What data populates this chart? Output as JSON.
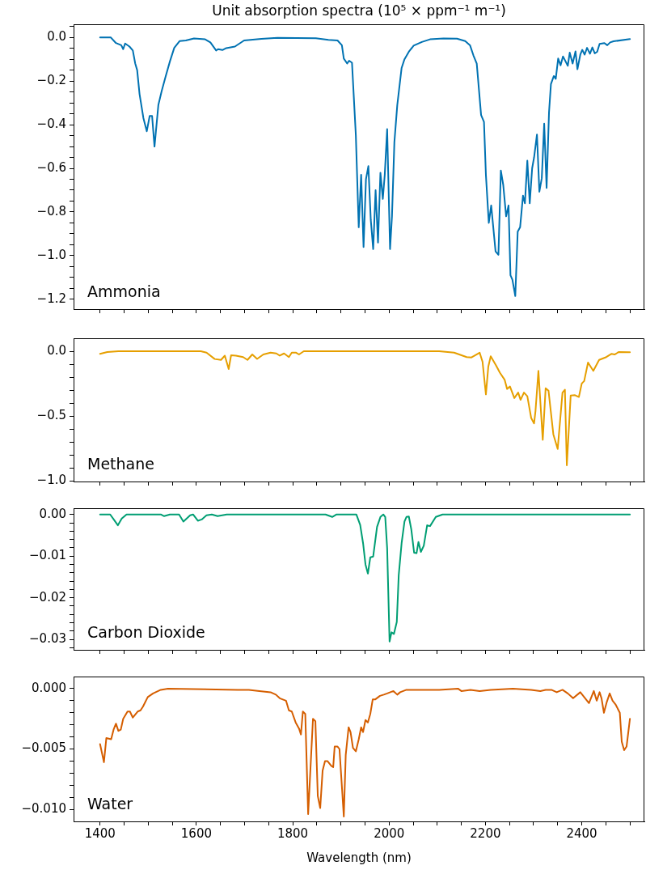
{
  "chart_data": [
    {
      "type": "line",
      "title": "Unit absorption spectra (10⁵ × ppm⁻¹ m⁻¹)",
      "annotations": [
        "Ammonia"
      ],
      "tick_labels": "y",
      "xlim": [
        1345,
        2530
      ],
      "xticks": [
        {
          "value": 1400,
          "label": null
        },
        {
          "value": 1450,
          "label": null
        },
        {
          "value": 1500,
          "label": null
        },
        {
          "value": 1550,
          "label": null
        },
        {
          "value": 1600,
          "label": null
        },
        {
          "value": 1650,
          "label": null
        },
        {
          "value": 1700,
          "label": null
        },
        {
          "value": 1750,
          "label": null
        },
        {
          "value": 1800,
          "label": null
        },
        {
          "value": 1850,
          "label": null
        },
        {
          "value": 1900,
          "label": null
        },
        {
          "value": 1950,
          "label": null
        },
        {
          "value": 2000,
          "label": null
        },
        {
          "value": 2050,
          "label": null
        },
        {
          "value": 2100,
          "label": null
        },
        {
          "value": 2150,
          "label": null
        },
        {
          "value": 2200,
          "label": null
        },
        {
          "value": 2250,
          "label": null
        },
        {
          "value": 2300,
          "label": null
        },
        {
          "value": 2350,
          "label": null
        },
        {
          "value": 2400,
          "label": null
        },
        {
          "value": 2450,
          "label": null
        },
        {
          "value": 2500,
          "label": null
        }
      ],
      "ylim": [
        -1.245,
        0.06
      ],
      "yticks": [
        {
          "value": 0.05,
          "label": null
        },
        {
          "value": 0,
          "label": "0.0"
        },
        {
          "value": -0.05,
          "label": null
        },
        {
          "value": -0.1,
          "label": null
        },
        {
          "value": -0.15,
          "label": null
        },
        {
          "value": -0.2,
          "label": "−0.2"
        },
        {
          "value": -0.25,
          "label": null
        },
        {
          "value": -0.3,
          "label": null
        },
        {
          "value": -0.35,
          "label": null
        },
        {
          "value": -0.4,
          "label": "−0.4"
        },
        {
          "value": -0.45,
          "label": null
        },
        {
          "value": -0.5,
          "label": null
        },
        {
          "value": -0.55,
          "label": null
        },
        {
          "value": -0.6,
          "label": "−0.6"
        },
        {
          "value": -0.65,
          "label": null
        },
        {
          "value": -0.7,
          "label": null
        },
        {
          "value": -0.75,
          "label": null
        },
        {
          "value": -0.8,
          "label": "−0.8"
        },
        {
          "value": -0.85,
          "label": null
        },
        {
          "value": -0.9,
          "label": null
        },
        {
          "value": -0.95,
          "label": null
        },
        {
          "value": -1.0,
          "label": "−1.0"
        },
        {
          "value": -1.05,
          "label": null
        },
        {
          "value": -1.1,
          "label": null
        },
        {
          "value": -1.15,
          "label": null
        },
        {
          "value": -1.2,
          "label": "−1.2"
        }
      ],
      "series": [
        {
          "color": "#0072b2",
          "x": [
            1400,
            1422,
            1433,
            1444,
            1448,
            1452,
            1461,
            1468,
            1473,
            1477,
            1482,
            1490,
            1497,
            1503,
            1508,
            1513,
            1521,
            1528,
            1536,
            1545,
            1554,
            1565,
            1578,
            1595,
            1618,
            1629,
            1641,
            1645,
            1654,
            1662,
            1680,
            1699,
            1735,
            1768,
            1848,
            1874,
            1893,
            1902,
            1906,
            1913,
            1917,
            1923,
            1931,
            1937,
            1942,
            1947,
            1952,
            1957,
            1962,
            1967,
            1972,
            1977,
            1982,
            1987,
            1991,
            1996,
            2002,
            2006,
            2011,
            2017,
            2026,
            2032,
            2041,
            2051,
            2068,
            2085,
            2113,
            2141,
            2158,
            2168,
            2175,
            2182,
            2191,
            2197,
            2201,
            2207,
            2212,
            2221,
            2227,
            2232,
            2237,
            2243,
            2248,
            2252,
            2256,
            2262,
            2267,
            2272,
            2278,
            2282,
            2287,
            2292,
            2297,
            2301,
            2307,
            2312,
            2317,
            2322,
            2327,
            2332,
            2336,
            2342,
            2346,
            2351,
            2356,
            2361,
            2371,
            2375,
            2381,
            2387,
            2391,
            2397,
            2401,
            2406,
            2411,
            2417,
            2422,
            2427,
            2432,
            2437,
            2447,
            2453,
            2459,
            2466,
            2500
          ],
          "values": [
            0,
            0,
            -0.026,
            -0.036,
            -0.054,
            -0.028,
            -0.042,
            -0.06,
            -0.12,
            -0.15,
            -0.26,
            -0.37,
            -0.43,
            -0.36,
            -0.36,
            -0.5,
            -0.31,
            -0.245,
            -0.18,
            -0.11,
            -0.048,
            -0.017,
            -0.014,
            -0.005,
            -0.009,
            -0.023,
            -0.06,
            -0.054,
            -0.058,
            -0.049,
            -0.042,
            -0.014,
            -0.007,
            -0.002,
            -0.004,
            -0.011,
            -0.014,
            -0.036,
            -0.097,
            -0.12,
            -0.107,
            -0.116,
            -0.45,
            -0.87,
            -0.63,
            -0.96,
            -0.65,
            -0.59,
            -0.836,
            -0.97,
            -0.7,
            -0.94,
            -0.62,
            -0.74,
            -0.63,
            -0.42,
            -0.97,
            -0.82,
            -0.48,
            -0.31,
            -0.14,
            -0.1,
            -0.066,
            -0.038,
            -0.021,
            -0.009,
            -0.005,
            -0.006,
            -0.017,
            -0.036,
            -0.082,
            -0.12,
            -0.356,
            -0.387,
            -0.63,
            -0.85,
            -0.77,
            -0.98,
            -0.996,
            -0.61,
            -0.676,
            -0.82,
            -0.77,
            -1.09,
            -1.11,
            -1.185,
            -0.89,
            -0.87,
            -0.725,
            -0.76,
            -0.565,
            -0.76,
            -0.6,
            -0.55,
            -0.445,
            -0.707,
            -0.645,
            -0.395,
            -0.69,
            -0.344,
            -0.214,
            -0.177,
            -0.19,
            -0.097,
            -0.128,
            -0.087,
            -0.13,
            -0.07,
            -0.12,
            -0.064,
            -0.146,
            -0.079,
            -0.057,
            -0.079,
            -0.048,
            -0.075,
            -0.046,
            -0.073,
            -0.066,
            -0.03,
            -0.026,
            -0.036,
            -0.023,
            -0.018,
            -0.008
          ]
        }
      ]
    },
    {
      "type": "line",
      "annotations": [
        "Methane"
      ],
      "tick_labels": "y",
      "xlim": [
        1345,
        2530
      ],
      "xticks": [
        {
          "value": 1400,
          "label": null
        },
        {
          "value": 1450,
          "label": null
        },
        {
          "value": 1500,
          "label": null
        },
        {
          "value": 1550,
          "label": null
        },
        {
          "value": 1600,
          "label": null
        },
        {
          "value": 1650,
          "label": null
        },
        {
          "value": 1700,
          "label": null
        },
        {
          "value": 1750,
          "label": null
        },
        {
          "value": 1800,
          "label": null
        },
        {
          "value": 1850,
          "label": null
        },
        {
          "value": 1900,
          "label": null
        },
        {
          "value": 1950,
          "label": null
        },
        {
          "value": 2000,
          "label": null
        },
        {
          "value": 2050,
          "label": null
        },
        {
          "value": 2100,
          "label": null
        },
        {
          "value": 2150,
          "label": null
        },
        {
          "value": 2200,
          "label": null
        },
        {
          "value": 2250,
          "label": null
        },
        {
          "value": 2300,
          "label": null
        },
        {
          "value": 2350,
          "label": null
        },
        {
          "value": 2400,
          "label": null
        },
        {
          "value": 2450,
          "label": null
        },
        {
          "value": 2500,
          "label": null
        }
      ],
      "ylim": [
        -1.005,
        0.1
      ],
      "yticks": [
        {
          "value": 0,
          "label": "0.0"
        },
        {
          "value": -0.1,
          "label": null
        },
        {
          "value": -0.2,
          "label": null
        },
        {
          "value": -0.3,
          "label": null
        },
        {
          "value": -0.4,
          "label": null
        },
        {
          "value": -0.5,
          "label": "−0.5"
        },
        {
          "value": -0.6,
          "label": null
        },
        {
          "value": -0.7,
          "label": null
        },
        {
          "value": -0.8,
          "label": null
        },
        {
          "value": -0.9,
          "label": null
        },
        {
          "value": -1.0,
          "label": "−1.0"
        }
      ],
      "series": [
        {
          "color": "#e69f00",
          "x": [
            1400,
            1415,
            1438,
            1609,
            1621,
            1638,
            1651,
            1659,
            1667,
            1672,
            1682,
            1697,
            1706,
            1716,
            1726,
            1739,
            1754,
            1766,
            1773,
            1782,
            1792,
            1798,
            1807,
            1813,
            1823,
            2104,
            2135,
            2161,
            2171,
            2188,
            2194,
            2201,
            2206,
            2211,
            2222,
            2230,
            2240,
            2245,
            2251,
            2260,
            2268,
            2273,
            2280,
            2287,
            2295,
            2301,
            2304,
            2310,
            2319,
            2325,
            2331,
            2341,
            2350,
            2360,
            2365,
            2369,
            2377,
            2386,
            2394,
            2400,
            2405,
            2413,
            2424,
            2436,
            2451,
            2462,
            2468,
            2477,
            2500
          ],
          "values": [
            -0.02,
            -0.006,
            0,
            0,
            -0.011,
            -0.06,
            -0.067,
            -0.034,
            -0.137,
            -0.031,
            -0.034,
            -0.045,
            -0.067,
            -0.025,
            -0.059,
            -0.025,
            -0.011,
            -0.017,
            -0.034,
            -0.017,
            -0.045,
            -0.011,
            -0.011,
            -0.025,
            0,
            0,
            -0.011,
            -0.045,
            -0.048,
            -0.011,
            -0.081,
            -0.333,
            -0.118,
            -0.039,
            -0.109,
            -0.165,
            -0.221,
            -0.291,
            -0.272,
            -0.361,
            -0.319,
            -0.375,
            -0.319,
            -0.347,
            -0.515,
            -0.557,
            -0.459,
            -0.151,
            -0.683,
            -0.286,
            -0.305,
            -0.641,
            -0.754,
            -0.319,
            -0.297,
            -0.88,
            -0.342,
            -0.339,
            -0.353,
            -0.249,
            -0.23,
            -0.087,
            -0.151,
            -0.067,
            -0.045,
            -0.02,
            -0.025,
            -0.006,
            -0.008
          ]
        }
      ]
    },
    {
      "type": "line",
      "annotations": [
        "Carbon Dioxide"
      ],
      "tick_labels": "y",
      "xlim": [
        1345,
        2530
      ],
      "xticks": [
        {
          "value": 1400,
          "label": null
        },
        {
          "value": 1450,
          "label": null
        },
        {
          "value": 1500,
          "label": null
        },
        {
          "value": 1550,
          "label": null
        },
        {
          "value": 1600,
          "label": null
        },
        {
          "value": 1650,
          "label": null
        },
        {
          "value": 1700,
          "label": null
        },
        {
          "value": 1750,
          "label": null
        },
        {
          "value": 1800,
          "label": null
        },
        {
          "value": 1850,
          "label": null
        },
        {
          "value": 1900,
          "label": null
        },
        {
          "value": 1950,
          "label": null
        },
        {
          "value": 2000,
          "label": null
        },
        {
          "value": 2050,
          "label": null
        },
        {
          "value": 2100,
          "label": null
        },
        {
          "value": 2150,
          "label": null
        },
        {
          "value": 2200,
          "label": null
        },
        {
          "value": 2250,
          "label": null
        },
        {
          "value": 2300,
          "label": null
        },
        {
          "value": 2350,
          "label": null
        },
        {
          "value": 2400,
          "label": null
        },
        {
          "value": 2450,
          "label": null
        },
        {
          "value": 2500,
          "label": null
        }
      ],
      "ylim": [
        -0.0325,
        0.0015
      ],
      "yticks": [
        {
          "value": 0,
          "label": "0.00"
        },
        {
          "value": -0.002,
          "label": null
        },
        {
          "value": -0.004,
          "label": null
        },
        {
          "value": -0.006,
          "label": null
        },
        {
          "value": -0.008,
          "label": null
        },
        {
          "value": -0.01,
          "label": "−0.01"
        },
        {
          "value": -0.012,
          "label": null
        },
        {
          "value": -0.014,
          "label": null
        },
        {
          "value": -0.016,
          "label": null
        },
        {
          "value": -0.018,
          "label": null
        },
        {
          "value": -0.02,
          "label": "−0.02"
        },
        {
          "value": -0.022,
          "label": null
        },
        {
          "value": -0.024,
          "label": null
        },
        {
          "value": -0.026,
          "label": null
        },
        {
          "value": -0.028,
          "label": null
        },
        {
          "value": -0.03,
          "label": "−0.03"
        },
        {
          "value": -0.032,
          "label": null
        }
      ],
      "series": [
        {
          "color": "#009e73",
          "x": [
            1400,
            1421,
            1429,
            1437,
            1445,
            1455,
            1526,
            1533,
            1545,
            1564,
            1573,
            1587,
            1593,
            1603,
            1611,
            1621,
            1632,
            1644,
            1663,
            1868,
            1882,
            1891,
            1932,
            1940,
            1946,
            1951,
            1956,
            1961,
            1967,
            1975,
            1982,
            1988,
            1992,
            1996,
            2001,
            2005,
            2010,
            2016,
            2020,
            2026,
            2032,
            2036,
            2041,
            2046,
            2052,
            2057,
            2061,
            2066,
            2072,
            2079,
            2085,
            2097,
            2111,
            2478,
            2500
          ],
          "values": [
            0,
            0,
            -0.0013,
            -0.0026,
            -0.001,
            0,
            0,
            -0.0004,
            0,
            0,
            -0.0017,
            -0.0002,
            0,
            -0.0015,
            -0.0012,
            -0.0002,
            0,
            -0.0004,
            0,
            0,
            -0.0006,
            0,
            0,
            -0.0025,
            -0.0069,
            -0.012,
            -0.0142,
            -0.0103,
            -0.0101,
            -0.003,
            -0.0006,
            0,
            -0.0006,
            -0.0081,
            -0.0305,
            -0.0283,
            -0.0287,
            -0.0258,
            -0.0146,
            -0.0069,
            -0.0017,
            -0.0006,
            -0.0005,
            -0.0035,
            -0.0092,
            -0.0093,
            -0.0066,
            -0.009,
            -0.0075,
            -0.0026,
            -0.0028,
            -0.0006,
            0,
            0,
            0
          ]
        }
      ]
    },
    {
      "type": "line",
      "annotations": [
        "Water"
      ],
      "xlabel": "Wavelength (nm)",
      "xlim": [
        1345,
        2530
      ],
      "xticks": [
        {
          "value": 1400,
          "label": "1400"
        },
        {
          "value": 1450,
          "label": null
        },
        {
          "value": 1500,
          "label": null
        },
        {
          "value": 1550,
          "label": null
        },
        {
          "value": 1600,
          "label": "1600"
        },
        {
          "value": 1650,
          "label": null
        },
        {
          "value": 1700,
          "label": null
        },
        {
          "value": 1750,
          "label": null
        },
        {
          "value": 1800,
          "label": "1800"
        },
        {
          "value": 1850,
          "label": null
        },
        {
          "value": 1900,
          "label": null
        },
        {
          "value": 1950,
          "label": null
        },
        {
          "value": 2000,
          "label": "2000"
        },
        {
          "value": 2050,
          "label": null
        },
        {
          "value": 2100,
          "label": null
        },
        {
          "value": 2150,
          "label": null
        },
        {
          "value": 2200,
          "label": "2200"
        },
        {
          "value": 2250,
          "label": null
        },
        {
          "value": 2300,
          "label": null
        },
        {
          "value": 2350,
          "label": null
        },
        {
          "value": 2400,
          "label": "2400"
        },
        {
          "value": 2450,
          "label": null
        },
        {
          "value": 2500,
          "label": null
        }
      ],
      "ylim": [
        -0.011,
        0.001
      ],
      "yticks": [
        {
          "value": 0,
          "label": "0.000"
        },
        {
          "value": -0.001,
          "label": null
        },
        {
          "value": -0.002,
          "label": null
        },
        {
          "value": -0.003,
          "label": null
        },
        {
          "value": -0.004,
          "label": null
        },
        {
          "value": -0.005,
          "label": "−0.005"
        },
        {
          "value": -0.006,
          "label": null
        },
        {
          "value": -0.007,
          "label": null
        },
        {
          "value": -0.008,
          "label": null
        },
        {
          "value": -0.009,
          "label": null
        },
        {
          "value": -0.01,
          "label": "−0.010"
        }
      ],
      "series": [
        {
          "color": "#d55e00",
          "x": [
            1400,
            1408,
            1413,
            1423,
            1428,
            1433,
            1438,
            1443,
            1448,
            1457,
            1462,
            1468,
            1478,
            1484,
            1489,
            1499,
            1510,
            1526,
            1541,
            1686,
            1709,
            1731,
            1754,
            1765,
            1773,
            1786,
            1792,
            1798,
            1806,
            1813,
            1817,
            1821,
            1826,
            1832,
            1842,
            1847,
            1852,
            1857,
            1862,
            1867,
            1872,
            1880,
            1884,
            1887,
            1893,
            1897,
            1903,
            1906,
            1910,
            1916,
            1920,
            1925,
            1931,
            1937,
            1942,
            1946,
            1951,
            1956,
            1961,
            1966,
            1971,
            1981,
            1989,
            1996,
            2009,
            2017,
            2023,
            2036,
            2074,
            2104,
            2143,
            2150,
            2169,
            2188,
            2211,
            2257,
            2295,
            2314,
            2325,
            2337,
            2348,
            2360,
            2371,
            2382,
            2397,
            2405,
            2415,
            2425,
            2431,
            2437,
            2441,
            2446,
            2452,
            2458,
            2464,
            2470,
            2479,
            2483,
            2488,
            2493,
            2500
          ],
          "values": [
            -0.0046,
            -0.0061,
            -0.0041,
            -0.0042,
            -0.0034,
            -0.0029,
            -0.0035,
            -0.0034,
            -0.0025,
            -0.0019,
            -0.0019,
            -0.0024,
            -0.0019,
            -0.0018,
            -0.0015,
            -0.0007,
            -0.0004,
            -0.0001,
            0,
            -0.0001,
            -0.0001,
            -0.0002,
            -0.0003,
            -0.0005,
            -0.0008,
            -0.001,
            -0.0018,
            -0.0019,
            -0.0028,
            -0.0033,
            -0.0038,
            -0.0019,
            -0.0021,
            -0.0104,
            -0.0025,
            -0.0027,
            -0.0089,
            -0.0099,
            -0.0068,
            -0.006,
            -0.006,
            -0.0064,
            -0.0065,
            -0.0048,
            -0.0048,
            -0.005,
            -0.0087,
            -0.0106,
            -0.0055,
            -0.0032,
            -0.0036,
            -0.0049,
            -0.0052,
            -0.0042,
            -0.0032,
            -0.0036,
            -0.0026,
            -0.0028,
            -0.0021,
            -0.0009,
            -0.0009,
            -0.0006,
            -0.0005,
            -0.0004,
            -0.0002,
            -0.0005,
            -0.0003,
            -0.0001,
            -0.0001,
            -0.0001,
            0,
            -0.0002,
            -0.0001,
            -0.0002,
            -0.0001,
            0,
            -0.0001,
            -0.0002,
            -0.0001,
            -0.0001,
            -0.0003,
            -0.0001,
            -0.0004,
            -0.0008,
            -0.0003,
            -0.0007,
            -0.0012,
            -0.0002,
            -0.001,
            -0.0003,
            -0.0008,
            -0.002,
            -0.0011,
            -0.0004,
            -0.001,
            -0.0013,
            -0.002,
            -0.0044,
            -0.0051,
            -0.0048,
            -0.0025
          ]
        }
      ]
    }
  ]
}
